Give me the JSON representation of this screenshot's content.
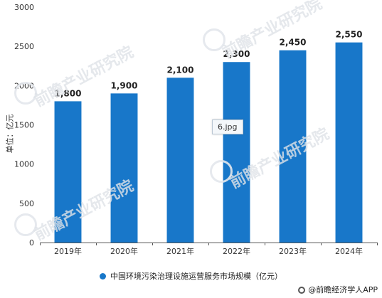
{
  "chart_data": {
    "type": "bar",
    "categories": [
      "2019年",
      "2020年",
      "2021年",
      "2022年",
      "2023年",
      "2024年"
    ],
    "series": [
      {
        "name": "中国环境污染治理设施运营服务市场规模（亿元）",
        "values": [
          1800,
          1900,
          2100,
          2300,
          2450,
          2550
        ],
        "labels": [
          "1,800",
          "1,900",
          "2,100",
          "2,300",
          "2,450",
          "2,550"
        ]
      }
    ],
    "ylabel": "单位：亿元",
    "ylim": [
      0,
      3000
    ],
    "yticks": [
      0,
      500,
      1000,
      1500,
      2000,
      2500,
      3000
    ],
    "grid": false,
    "legend_position": "bottom",
    "bar_color": "#1877c9"
  },
  "tooltip": "6.jpg",
  "source": "@前瞻经济学人APP",
  "watermark": "前瞻产业研究院"
}
